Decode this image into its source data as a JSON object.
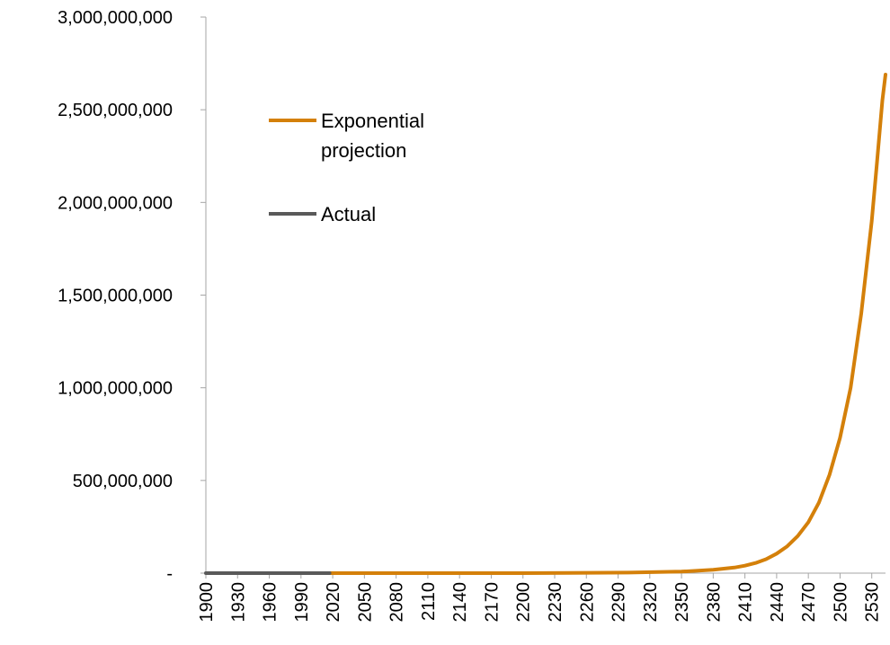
{
  "chart_data": {
    "type": "line",
    "title": "",
    "xlabel": "",
    "ylabel": "",
    "xlim": [
      1900,
      2543
    ],
    "ylim": [
      0,
      3000000000
    ],
    "y_ticks": [
      0,
      500000000,
      1000000000,
      1500000000,
      2000000000,
      2500000000,
      3000000000
    ],
    "y_tick_labels": [
      "-",
      "500,000,000",
      "1,000,000,000",
      "1,500,000,000",
      "2,000,000,000",
      "2,500,000,000",
      "3,000,000,000"
    ],
    "x_tick_labels": [
      "1900",
      "1930",
      "1960",
      "1990",
      "2020",
      "2050",
      "2080",
      "2110",
      "2140",
      "2170",
      "2200",
      "2230",
      "2260",
      "2290",
      "2320",
      "2350",
      "2380",
      "2410",
      "2440",
      "2470",
      "2500",
      "2530"
    ],
    "grid": false,
    "legend_position": "upper-left",
    "series": [
      {
        "name": "Exponential projection",
        "color": "#D4800A",
        "x": [
          2017,
          2100,
          2200,
          2300,
          2350,
          2380,
          2400,
          2410,
          2420,
          2430,
          2440,
          2450,
          2460,
          2470,
          2480,
          2490,
          2500,
          2510,
          2520,
          2530,
          2535,
          2540,
          2543
        ],
        "y": [
          0,
          100000,
          200000,
          3000000,
          8000000,
          18000000,
          30000000,
          40000000,
          55000000,
          75000000,
          105000000,
          145000000,
          200000000,
          275000000,
          380000000,
          530000000,
          730000000,
          1000000000,
          1400000000,
          1900000000,
          2220000000,
          2550000000,
          2690000000
        ]
      },
      {
        "name": "Actual",
        "color": "#595959",
        "x": [
          1900,
          1930,
          1960,
          1990,
          2017
        ],
        "y": [
          0,
          0,
          0,
          0,
          0
        ]
      }
    ]
  }
}
